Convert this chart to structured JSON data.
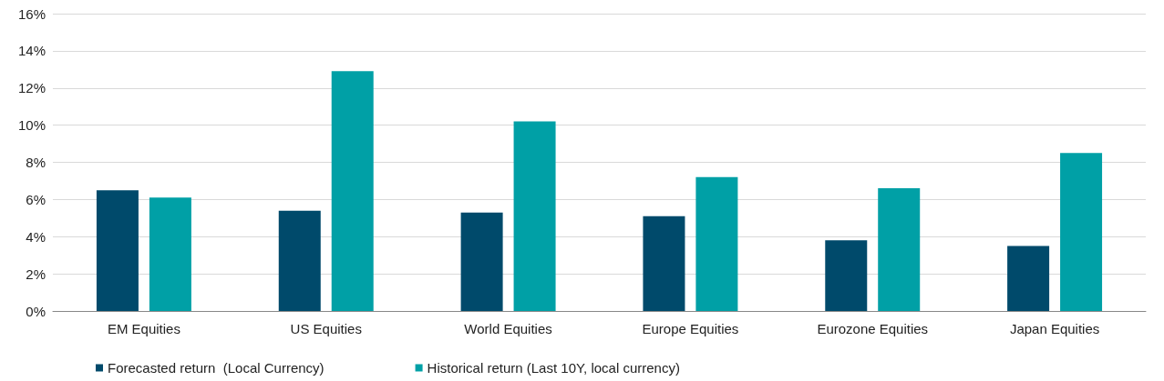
{
  "chart_data": {
    "type": "bar",
    "categories": [
      "EM Equities",
      "US Equities",
      "World Equities",
      "Europe Equities",
      "Eurozone Equities",
      "Japan Equities"
    ],
    "series": [
      {
        "name": "Forecasted return  (Local Currency)",
        "color": "#004a6b",
        "values": [
          6.5,
          5.4,
          5.3,
          5.1,
          3.8,
          3.5
        ]
      },
      {
        "name": "Historical return (Last 10Y, local currency)",
        "color": "#00a0a6",
        "values": [
          6.1,
          12.9,
          10.2,
          7.2,
          6.6,
          8.5
        ]
      }
    ],
    "ylim": [
      0,
      16
    ],
    "yticks": [
      {
        "value": 0,
        "label": "0%"
      },
      {
        "value": 2,
        "label": "2%"
      },
      {
        "value": 4,
        "label": "4%"
      },
      {
        "value": 6,
        "label": "6%"
      },
      {
        "value": 8,
        "label": "8%"
      },
      {
        "value": 10,
        "label": "10%"
      },
      {
        "value": 12,
        "label": "12%"
      },
      {
        "value": 14,
        "label": "14%"
      },
      {
        "value": 16,
        "label": "16%"
      }
    ],
    "grid": "y",
    "legend": "bottom left"
  }
}
